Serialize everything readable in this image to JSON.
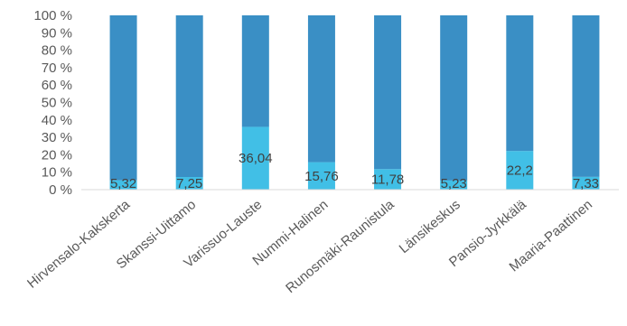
{
  "chart_data": {
    "type": "bar",
    "stacked": true,
    "percent_stacked": true,
    "categories": [
      "Hirvensalo-Kakskerta",
      "Skanssi-Uittamo",
      "Varissuo-Lauste",
      "Nummi-Halinen",
      "Runosmäki-Raunistula",
      "Länsikeskus",
      "Pansio-Jyrkkälä",
      "Maaria-Paattinen"
    ],
    "series": [
      {
        "values": [
          5.32,
          7.25,
          36.04,
          15.76,
          11.78,
          5.23,
          22.2,
          7.33
        ],
        "labels": [
          "5,32",
          "7,25",
          "36,04",
          "15,76",
          "11,78",
          "5,23",
          "22,2",
          "7,33"
        ],
        "color": "#41bfe6"
      },
      {
        "values": [
          94.68,
          92.75,
          63.96,
          84.24,
          88.22,
          94.77,
          77.8,
          92.67
        ],
        "color": "#3a8fc5"
      }
    ],
    "ylim": [
      0,
      100
    ],
    "yticks": [
      "0 %",
      "10 %",
      "20 %",
      "30 %",
      "40 %",
      "50 %",
      "60 %",
      "70 %",
      "80 %",
      "90 %",
      "100 %"
    ],
    "grid": false,
    "legend": "none"
  }
}
